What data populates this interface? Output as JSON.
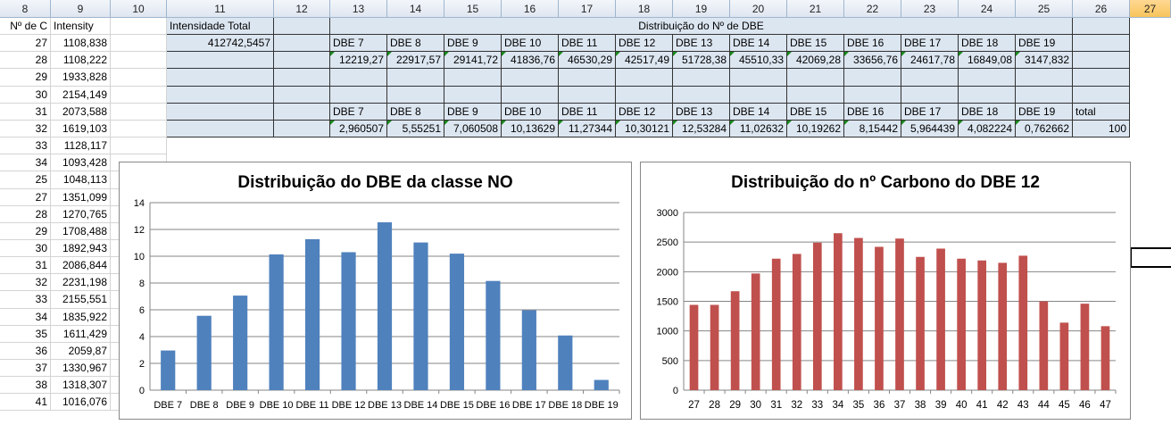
{
  "columns": [
    "8",
    "9",
    "10",
    "11",
    "12",
    "13",
    "14",
    "15",
    "16",
    "17",
    "18",
    "19",
    "20",
    "21",
    "22",
    "23",
    "24",
    "25",
    "26",
    "27"
  ],
  "selected_column": "27",
  "left_headers": {
    "nc": "Nº de C",
    "intensity": "Intensity"
  },
  "left_rows": [
    {
      "c": "27",
      "i": "1108,838"
    },
    {
      "c": "28",
      "i": "1108,222"
    },
    {
      "c": "29",
      "i": "1933,828"
    },
    {
      "c": "30",
      "i": "2154,149"
    },
    {
      "c": "31",
      "i": "2073,588"
    },
    {
      "c": "32",
      "i": "1619,103"
    },
    {
      "c": "33",
      "i": "1128,117"
    },
    {
      "c": "34",
      "i": "1093,428"
    },
    {
      "c": "25",
      "i": "1048,113"
    },
    {
      "c": "27",
      "i": "1351,099"
    },
    {
      "c": "28",
      "i": "1270,765"
    },
    {
      "c": "29",
      "i": "1708,488"
    },
    {
      "c": "30",
      "i": "1892,943"
    },
    {
      "c": "31",
      "i": "2086,844"
    },
    {
      "c": "32",
      "i": "2231,198"
    },
    {
      "c": "33",
      "i": "2155,551"
    },
    {
      "c": "34",
      "i": "1835,922"
    },
    {
      "c": "35",
      "i": "1611,429"
    },
    {
      "c": "36",
      "i": "2059,87"
    },
    {
      "c": "37",
      "i": "1330,967"
    },
    {
      "c": "38",
      "i": "1318,307"
    },
    {
      "c": "41",
      "i": "1016,076"
    }
  ],
  "intensidade": {
    "label": "Intensidade Total",
    "value": "412742,5457"
  },
  "distribuicao_title": "Distribuição do Nº de DBE",
  "dbe_labels": [
    "DBE 7",
    "DBE 8",
    "DBE 9",
    "DBE 10",
    "DBE 11",
    "DBE 12",
    "DBE 13",
    "DBE 14",
    "DBE 15",
    "DBE 16",
    "DBE 17",
    "DBE 18",
    "DBE 19"
  ],
  "dbe_values": [
    "12219,27",
    "22917,57",
    "29141,72",
    "41836,76",
    "46530,29",
    "42517,49",
    "51728,38",
    "45510,33",
    "42069,28",
    "33656,76",
    "24617,78",
    "16849,08",
    "3147,832"
  ],
  "dbe_percent": [
    "2,960507",
    "5,55251",
    "7,060508",
    "10,13629",
    "11,27344",
    "10,30121",
    "12,53284",
    "11,02632",
    "10,19262",
    "8,15442",
    "5,964439",
    "4,082224",
    "0,762662"
  ],
  "total_label": "total",
  "total_value": "100",
  "colors": {
    "blue_bar": "#4f81bd",
    "red_bar": "#c0504d",
    "table_fill": "#dce6f1",
    "header_selected": "#f8c55b"
  },
  "chart_data": [
    {
      "type": "bar",
      "title": "Distribuição do DBE da classe NO",
      "categories": [
        "DBE 7",
        "DBE 8",
        "DBE 9",
        "DBE 10",
        "DBE 11",
        "DBE 12",
        "DBE 13",
        "DBE 14",
        "DBE 15",
        "DBE 16",
        "DBE 17",
        "DBE 18",
        "DBE 19"
      ],
      "values": [
        2.960507,
        5.55251,
        7.060508,
        10.13629,
        11.27344,
        10.30121,
        12.53284,
        11.02632,
        10.19262,
        8.15442,
        5.964439,
        4.082224,
        0.762662
      ],
      "ylim": [
        0,
        14
      ],
      "yticks": [
        0,
        2,
        4,
        6,
        8,
        10,
        12,
        14
      ],
      "grid": true,
      "color": "#4f81bd"
    },
    {
      "type": "bar",
      "title": "Distribuição do nº Carbono do DBE 12",
      "categories": [
        "27",
        "28",
        "29",
        "30",
        "31",
        "32",
        "33",
        "34",
        "35",
        "36",
        "37",
        "38",
        "39",
        "40",
        "41",
        "42",
        "43",
        "44",
        "45",
        "46",
        "47"
      ],
      "values": [
        1440,
        1440,
        1670,
        1970,
        2220,
        2300,
        2490,
        2650,
        2570,
        2420,
        2560,
        2250,
        2390,
        2220,
        2190,
        2150,
        2270,
        1500,
        1140,
        1460,
        1080
      ],
      "ylim": [
        0,
        3000
      ],
      "yticks": [
        0,
        500,
        1000,
        1500,
        2000,
        2500,
        3000
      ],
      "grid": true,
      "color": "#c0504d"
    }
  ]
}
